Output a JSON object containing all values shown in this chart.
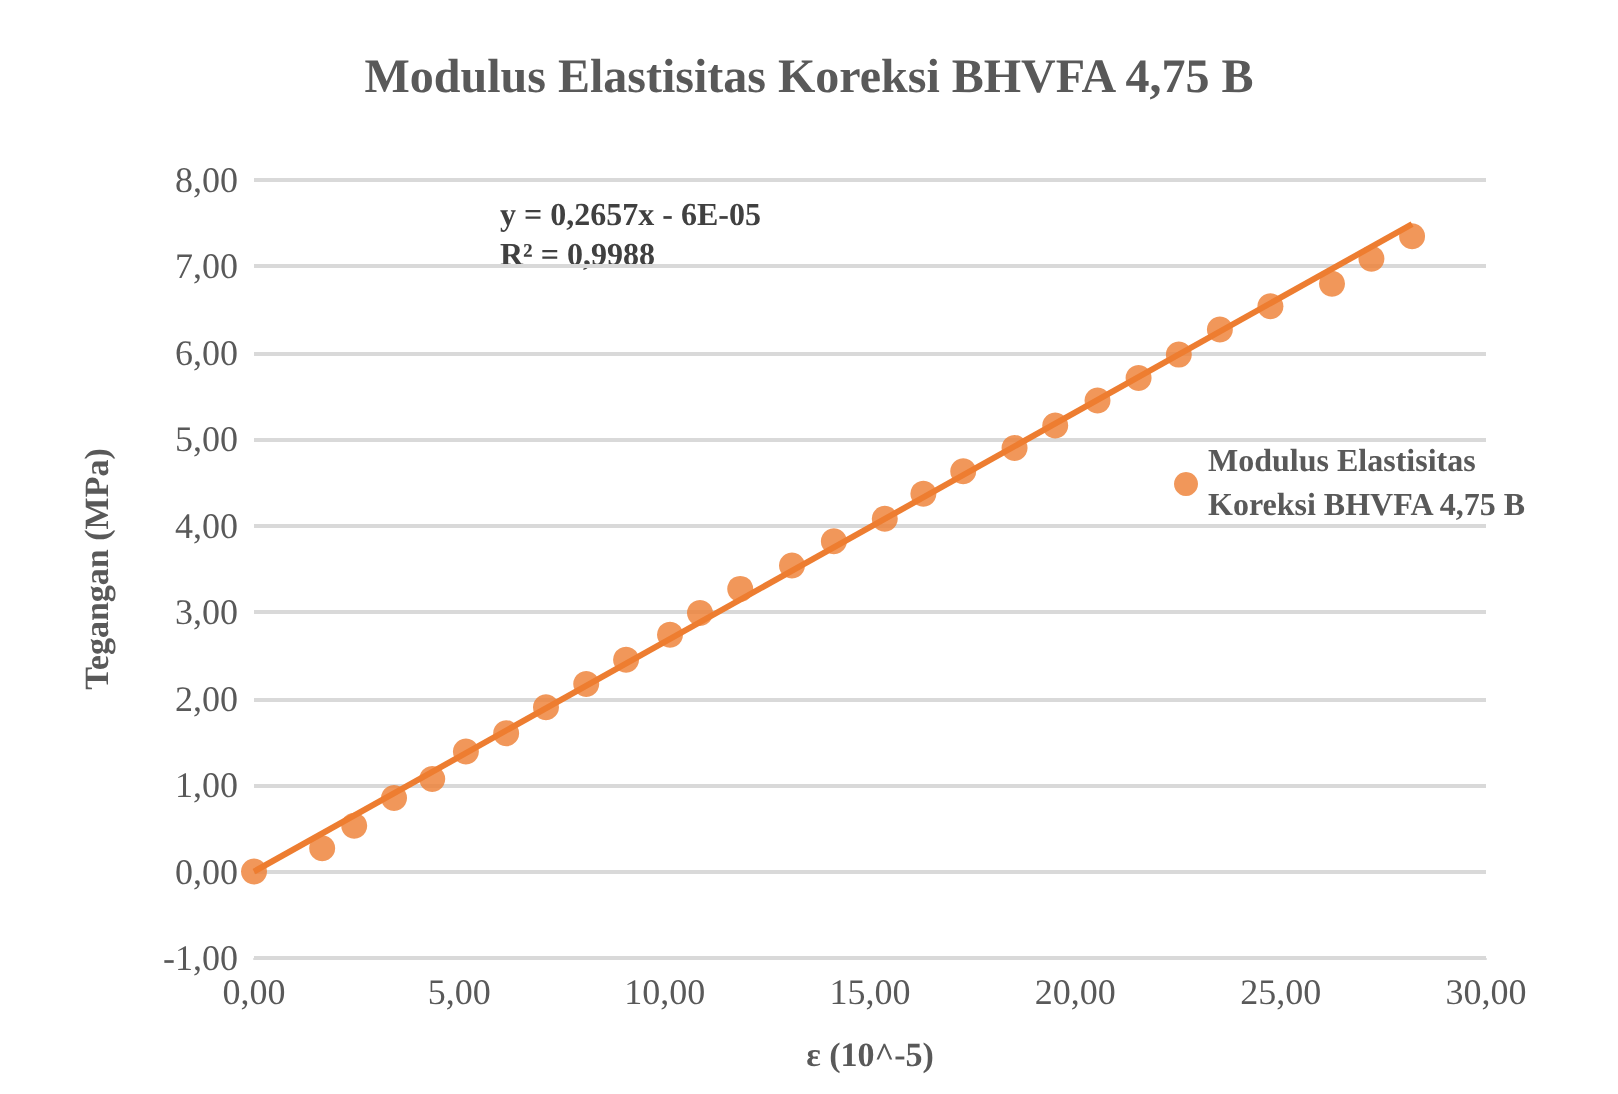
{
  "chart_data": {
    "type": "scatter",
    "title": "Modulus Elastisitas Koreksi BHVFA 4,75 B",
    "xlabel": "ε (10^-5)",
    "ylabel": "Tegangan (MPa)",
    "annotations": [
      "y = 0,2657x - 6E-05\nR² = 0,9988"
    ],
    "series": [
      {
        "name": "Modulus Elastisitas Koreksi BHVFA 4,75 B",
        "color": "#ed7d31",
        "marker": "circle",
        "x": [
          0,
          1.66,
          2.44,
          3.41,
          4.34,
          5.16,
          6.14,
          7.11,
          8.09,
          9.06,
          10.13,
          10.86,
          11.84,
          13.1,
          14.12,
          15.36,
          16.3,
          17.27,
          18.52,
          19.51,
          20.54,
          21.54,
          22.52,
          23.52,
          24.75,
          26.25,
          27.21,
          28.2
        ],
        "values": [
          0,
          0.27,
          0.53,
          0.85,
          1.07,
          1.39,
          1.6,
          1.9,
          2.17,
          2.45,
          2.74,
          2.99,
          3.27,
          3.54,
          3.82,
          4.08,
          4.37,
          4.63,
          4.9,
          5.16,
          5.45,
          5.71,
          5.98,
          6.27,
          6.54,
          6.8,
          7.09,
          7.35
        ]
      },
      {
        "type": "line",
        "color": "#ed7d31",
        "marker": "none",
        "x": [
          0,
          28.2
        ],
        "values": [
          0,
          7.49
        ]
      }
    ],
    "xlim": [
      0,
      30
    ],
    "xticks": [
      {
        "value": 0,
        "label": "0,00"
      },
      {
        "value": 5,
        "label": "5,00"
      },
      {
        "value": 10,
        "label": "10,00"
      },
      {
        "value": 15,
        "label": "15,00"
      },
      {
        "value": 20,
        "label": "20,00"
      },
      {
        "value": 25,
        "label": "25,00"
      },
      {
        "value": 30,
        "label": "30,00"
      }
    ],
    "ylim": [
      -1,
      8
    ],
    "yticks": [
      {
        "value": -1,
        "label": "-1,00"
      },
      {
        "value": 0,
        "label": "0,00"
      },
      {
        "value": 1,
        "label": "1,00"
      },
      {
        "value": 2,
        "label": "2,00"
      },
      {
        "value": 3,
        "label": "3,00"
      },
      {
        "value": 4,
        "label": "4,00"
      },
      {
        "value": 5,
        "label": "5,00"
      },
      {
        "value": 6,
        "label": "6,00"
      },
      {
        "value": 7,
        "label": "7,00"
      },
      {
        "value": 8,
        "label": "8,00"
      }
    ],
    "grid": "y",
    "legend": "right"
  }
}
